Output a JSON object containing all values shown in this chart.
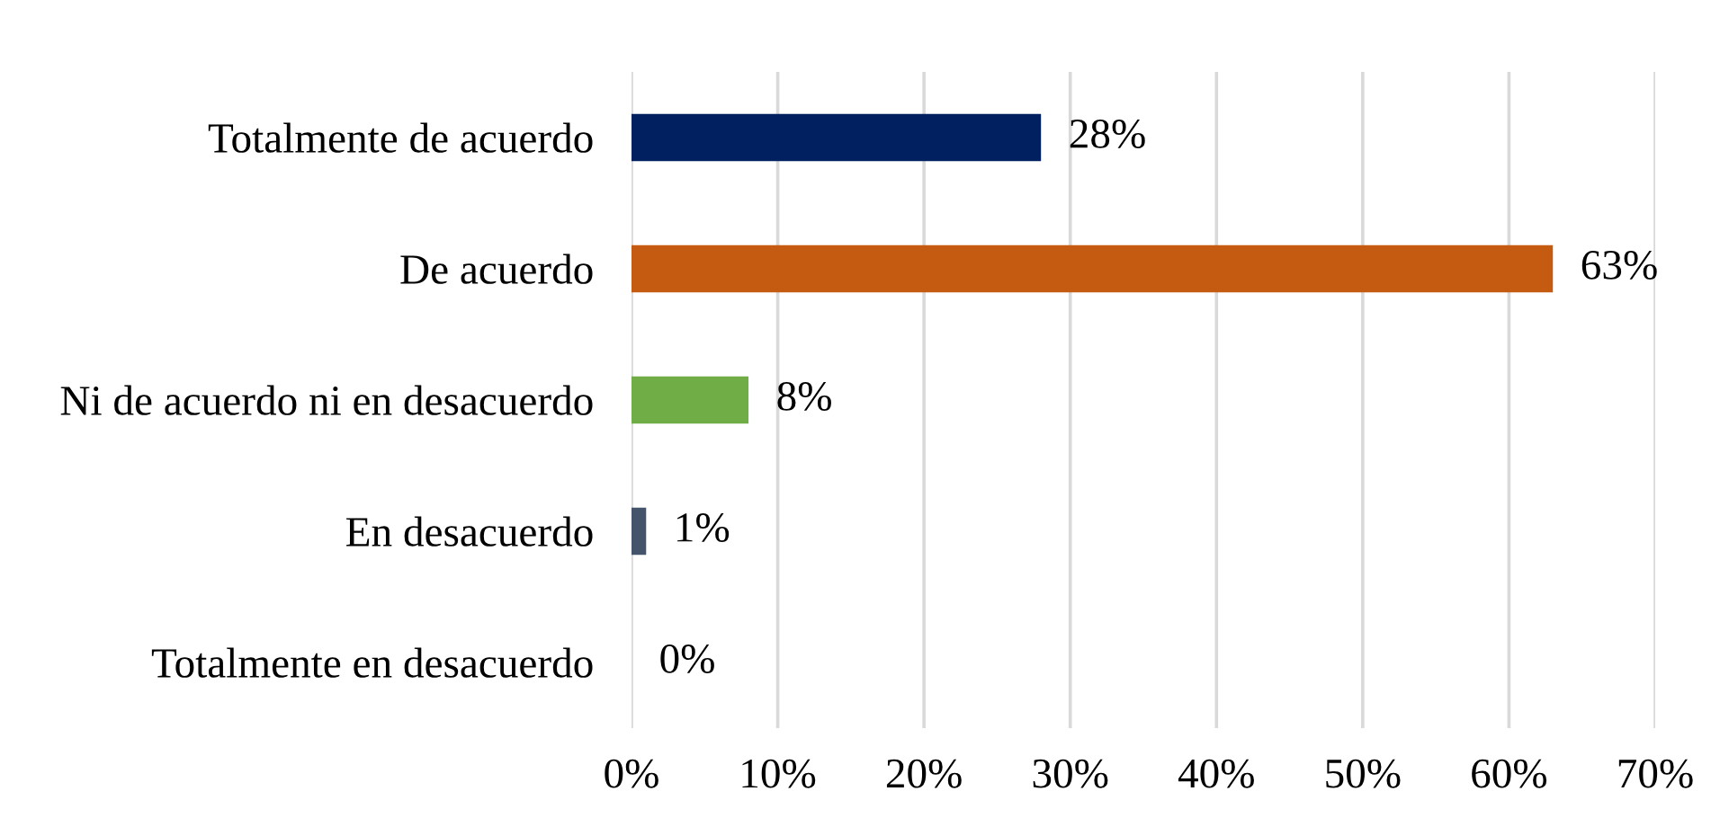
{
  "chart_data": {
    "type": "bar",
    "orientation": "horizontal",
    "categories": [
      "Totalmente de acuerdo",
      "De acuerdo",
      "Ni de acuerdo ni en desacuerdo",
      "En desacuerdo",
      "Totalmente en desacuerdo"
    ],
    "values": [
      28,
      63,
      8,
      1,
      0
    ],
    "colors": [
      "#002060",
      "#c55a11",
      "#70ad47",
      "#44546a",
      "#4472c4"
    ],
    "value_labels": [
      "28%",
      "63%",
      "8%",
      "1%",
      "0%"
    ],
    "xlim": [
      0,
      70
    ],
    "xticks": [
      {
        "value": 0,
        "label": "0%"
      },
      {
        "value": 10,
        "label": "10%"
      },
      {
        "value": 20,
        "label": "20%"
      },
      {
        "value": 30,
        "label": "30%"
      },
      {
        "value": 40,
        "label": "40%"
      },
      {
        "value": 50,
        "label": "50%"
      },
      {
        "value": 60,
        "label": "60%"
      },
      {
        "value": 70,
        "label": "70%"
      }
    ],
    "grid": "x",
    "legend": false
  }
}
